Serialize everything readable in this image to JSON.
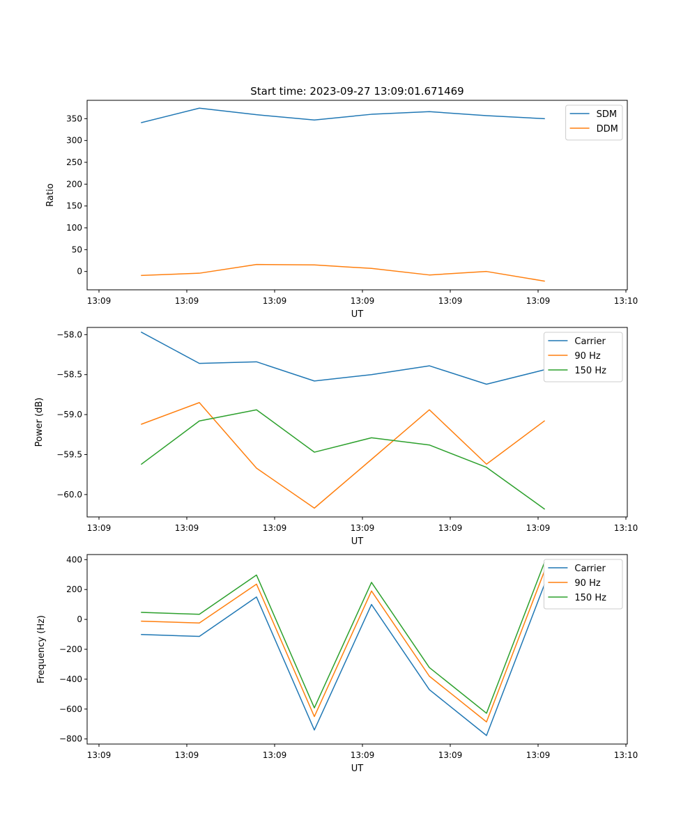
{
  "figure_title": "Start time: 2023-09-27 13:09:01.671469",
  "series_colors": {
    "blue": "#1f77b4",
    "orange": "#ff7f0e",
    "green": "#2ca02c"
  },
  "chart_data": [
    {
      "type": "line",
      "title": "Start time: 2023-09-27 13:09:01.671469",
      "xlabel": "UT",
      "ylabel": "Ratio",
      "x_tick_labels": [
        "13:09",
        "13:09",
        "13:09",
        "13:09",
        "13:09",
        "13:09",
        "13:10"
      ],
      "ylim": [
        -42,
        392
      ],
      "y_ticks": [
        0,
        50,
        100,
        150,
        200,
        250,
        300,
        350
      ],
      "legend_position": "top-right",
      "series": [
        {
          "name": "SDM",
          "color": "#1f77b4",
          "values": [
            341,
            374,
            359,
            347,
            360,
            366,
            357,
            350
          ]
        },
        {
          "name": "DDM",
          "color": "#ff7f0e",
          "values": [
            -9,
            -4,
            16,
            15,
            7,
            -8,
            0,
            -22
          ]
        }
      ]
    },
    {
      "type": "line",
      "title": "",
      "xlabel": "UT",
      "ylabel": "Power (dB)",
      "x_tick_labels": [
        "13:09",
        "13:09",
        "13:09",
        "13:09",
        "13:09",
        "13:09",
        "13:10"
      ],
      "ylim": [
        -60.28,
        -57.91
      ],
      "y_ticks": [
        -60.0,
        -59.5,
        -59.0,
        -58.5,
        -58.0
      ],
      "legend_position": "top-right",
      "series": [
        {
          "name": "Carrier",
          "color": "#1f77b4",
          "values": [
            -57.97,
            -58.36,
            -58.34,
            -58.58,
            -58.5,
            -58.39,
            -58.62,
            -58.44
          ]
        },
        {
          "name": "90 Hz",
          "color": "#ff7f0e",
          "values": [
            -59.12,
            -58.85,
            -59.67,
            -60.17,
            -59.56,
            -58.94,
            -59.62,
            -59.08
          ]
        },
        {
          "name": "150 Hz",
          "color": "#2ca02c",
          "values": [
            -59.62,
            -59.08,
            -58.94,
            -59.47,
            -59.29,
            -59.38,
            -59.66,
            -60.18
          ]
        }
      ]
    },
    {
      "type": "line",
      "title": "",
      "xlabel": "UT",
      "ylabel": "Frequency (Hz)",
      "x_tick_labels": [
        "13:09",
        "13:09",
        "13:09",
        "13:09",
        "13:09",
        "13:09",
        "13:10"
      ],
      "ylim": [
        -834,
        434
      ],
      "y_ticks": [
        -800,
        -600,
        -400,
        -200,
        0,
        200,
        400
      ],
      "legend_position": "top-right",
      "series": [
        {
          "name": "Carrier",
          "color": "#1f77b4",
          "values": [
            -101,
            -114,
            150,
            -740,
            100,
            -470,
            -777,
            232
          ]
        },
        {
          "name": "90 Hz",
          "color": "#ff7f0e",
          "values": [
            -12,
            -24,
            236,
            -650,
            190,
            -380,
            -686,
            322
          ]
        },
        {
          "name": "150 Hz",
          "color": "#2ca02c",
          "values": [
            47,
            34,
            297,
            -592,
            248,
            -322,
            -628,
            380
          ]
        }
      ]
    }
  ]
}
